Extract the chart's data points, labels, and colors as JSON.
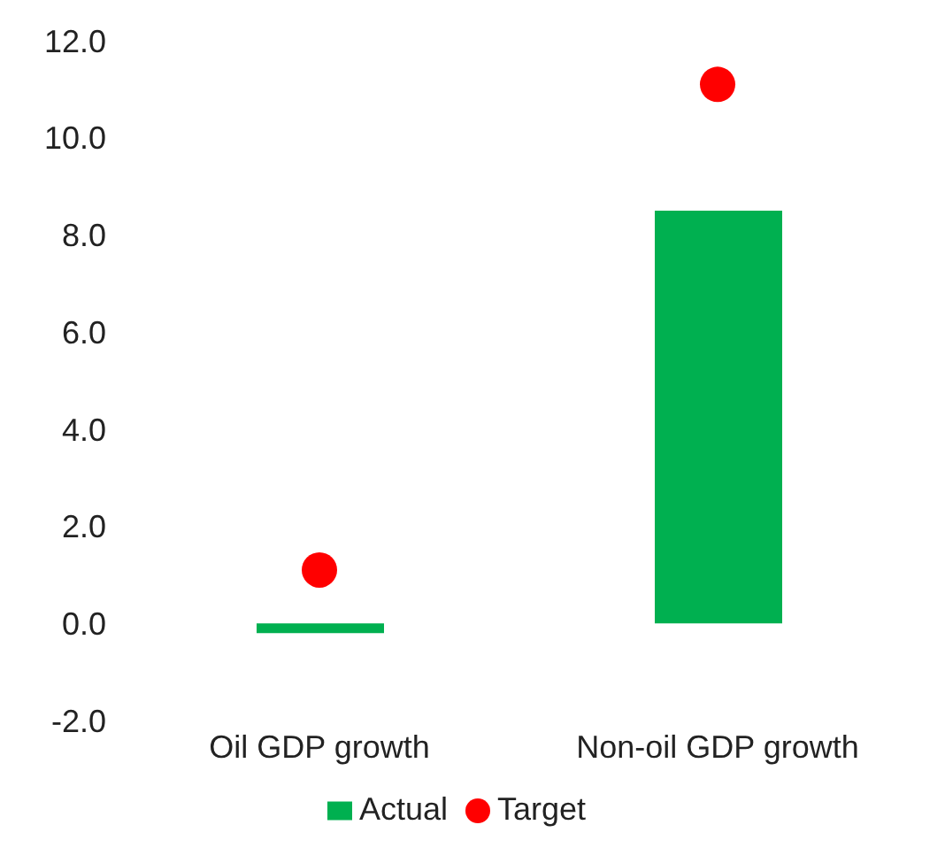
{
  "chart_data": {
    "type": "bar",
    "categories": [
      "Oil GDP growth",
      "Non-oil GDP growth"
    ],
    "series": [
      {
        "name": "Actual",
        "color": "#00b050",
        "values": [
          -0.2,
          8.5
        ]
      },
      {
        "name": "Target",
        "type": "scatter",
        "color": "#ff0000",
        "values": [
          1.1,
          11.1
        ]
      }
    ],
    "ylim": [
      -2,
      12
    ],
    "yticks": [
      {
        "value": -2,
        "label": "-2.0"
      },
      {
        "value": 0,
        "label": "0.0"
      },
      {
        "value": 2,
        "label": "2.0"
      },
      {
        "value": 4,
        "label": "4.0"
      },
      {
        "value": 6,
        "label": "6.0"
      },
      {
        "value": 8,
        "label": "8.0"
      },
      {
        "value": 10,
        "label": "10.0"
      },
      {
        "value": 12,
        "label": "12.0"
      }
    ],
    "grid": false,
    "legend": "bottom",
    "marker": "circle"
  }
}
